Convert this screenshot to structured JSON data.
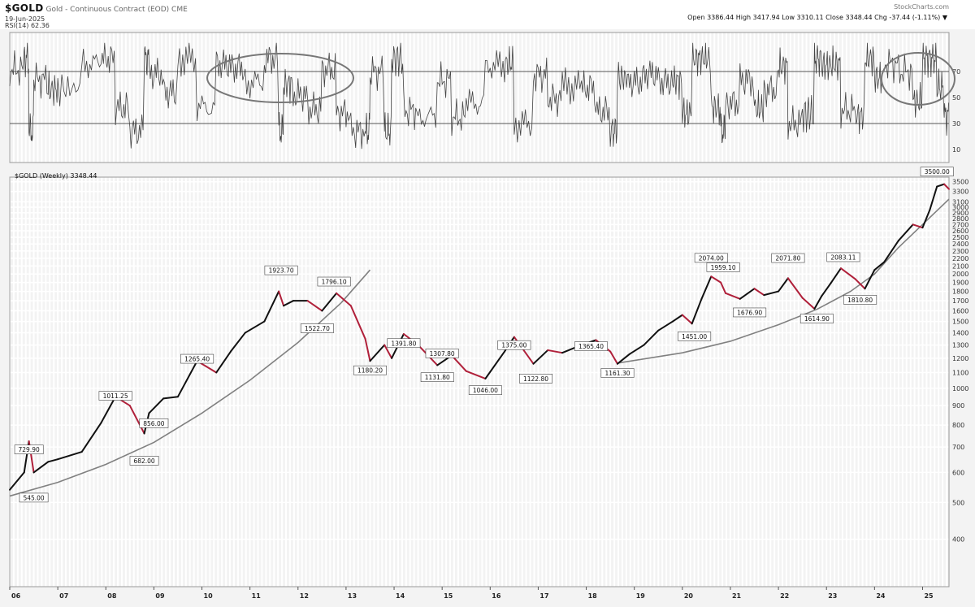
{
  "header": {
    "symbol": "$GOLD",
    "description": "Gold - Continuous Contract (EOD) CME",
    "date_line": "19-Jun-2025",
    "rsi_label": "RSI(14) 62.36",
    "site": "StockCharts.com",
    "ohlc": "Open 3386.44 High 3417.94 Low 3310.11 Close 3348.44 Chg -37.44 (-1.11%) ▼"
  },
  "indicator": {
    "name": "RSI(14)",
    "value": 62.36,
    "axis_labels": [
      "70",
      "50",
      "30",
      "10"
    ],
    "ylim": [
      0,
      100
    ],
    "overbought_level": 70,
    "oversold_level": 30,
    "highlight_ellipses": 2
  },
  "price_panel_label": "$GOLD (Weekly) 3348.44",
  "chart_data": {
    "type": "line",
    "title": "$GOLD (Weekly) 3348.44",
    "y_scale": "log",
    "ylim": [
      300,
      3600
    ],
    "yticks": [
      "3500",
      "3300",
      "3100",
      "3000",
      "2900",
      "2800",
      "2700",
      "2600",
      "2500",
      "2400",
      "2300",
      "2200",
      "2100",
      "2000",
      "1900",
      "1800",
      "1700",
      "1600",
      "1500",
      "1400",
      "1300",
      "1200",
      "1100",
      "1000",
      "900",
      "800",
      "700",
      "600",
      "500",
      "400"
    ],
    "xticks": [
      "06",
      "07",
      "08",
      "09",
      "10",
      "11",
      "12",
      "13",
      "14",
      "15",
      "16",
      "17",
      "18",
      "19",
      "20",
      "21",
      "22",
      "23",
      "24",
      "25"
    ],
    "xlim": [
      2006.0,
      2025.55
    ],
    "series": [
      {
        "x": [
          2006.0,
          2006.3,
          2006.4,
          2006.5,
          2006.8,
          2007.0,
          2007.5,
          2007.9,
          2008.2,
          2008.5,
          2008.8,
          2008.9,
          2009.2,
          2009.5,
          2009.9,
          2010.3,
          2010.6,
          2010.9,
          2011.3,
          2011.6,
          2011.7,
          2011.9,
          2012.2,
          2012.5,
          2012.8,
          2013.1,
          2013.4,
          2013.5,
          2013.8,
          2013.95,
          2014.2,
          2014.5,
          2014.9,
          2015.2,
          2015.5,
          2015.9,
          2016.3,
          2016.5,
          2016.9,
          2017.2,
          2017.5,
          2017.9,
          2018.2,
          2018.5,
          2018.65,
          2018.9,
          2019.2,
          2019.5,
          2019.8,
          2020.0,
          2020.2,
          2020.4,
          2020.6,
          2020.8,
          2020.9,
          2021.2,
          2021.5,
          2021.7,
          2022.0,
          2022.2,
          2022.5,
          2022.75,
          2022.9,
          2023.1,
          2023.3,
          2023.6,
          2023.8,
          2024.0,
          2024.2,
          2024.5,
          2024.8,
          2025.0,
          2025.15,
          2025.3,
          2025.45,
          2025.55
        ],
        "values": [
          540,
          600,
          725,
          600,
          640,
          650,
          680,
          810,
          950,
          900,
          760,
          860,
          940,
          950,
          1180,
          1100,
          1250,
          1400,
          1500,
          1800,
          1650,
          1700,
          1700,
          1600,
          1780,
          1650,
          1350,
          1180,
          1300,
          1200,
          1390,
          1300,
          1150,
          1220,
          1110,
          1060,
          1250,
          1365,
          1160,
          1260,
          1240,
          1300,
          1340,
          1250,
          1160,
          1230,
          1300,
          1420,
          1500,
          1560,
          1480,
          1720,
          1970,
          1900,
          1780,
          1720,
          1830,
          1760,
          1800,
          1950,
          1730,
          1620,
          1750,
          1900,
          2070,
          1940,
          1830,
          2050,
          2150,
          2450,
          2700,
          2650,
          2950,
          3400,
          3450,
          3348
        ]
      }
    ],
    "annotations": [
      {
        "label": "729.90",
        "x": 2006.4,
        "y": 729.9
      },
      {
        "label": "545.00",
        "x": 2006.5,
        "y": 545.0
      },
      {
        "label": "1011.25",
        "x": 2008.2,
        "y": 1011.25
      },
      {
        "label": "682.00",
        "x": 2008.8,
        "y": 682.0
      },
      {
        "label": "856.00",
        "x": 2009.0,
        "y": 856.0
      },
      {
        "label": "1265.40",
        "x": 2009.9,
        "y": 1265.4
      },
      {
        "label": "1923.70",
        "x": 2011.65,
        "y": 1923.7
      },
      {
        "label": "1796.10",
        "x": 2012.75,
        "y": 1796.1
      },
      {
        "label": "1522.70",
        "x": 2012.4,
        "y": 1522.7
      },
      {
        "label": "1180.20",
        "x": 2013.5,
        "y": 1180.2
      },
      {
        "label": "1391.80",
        "x": 2014.2,
        "y": 1391.8
      },
      {
        "label": "1307.80",
        "x": 2015.0,
        "y": 1307.8
      },
      {
        "label": "1131.80",
        "x": 2014.9,
        "y": 1131.8
      },
      {
        "label": "1046.00",
        "x": 2015.9,
        "y": 1046.0
      },
      {
        "label": "1375.00",
        "x": 2016.5,
        "y": 1375.0
      },
      {
        "label": "1122.80",
        "x": 2016.95,
        "y": 1122.8
      },
      {
        "label": "1365.40",
        "x": 2018.1,
        "y": 1365.4
      },
      {
        "label": "1161.30",
        "x": 2018.65,
        "y": 1161.3
      },
      {
        "label": "2074.00",
        "x": 2020.6,
        "y": 2074.0
      },
      {
        "label": "1959.10",
        "x": 2020.85,
        "y": 1959.1
      },
      {
        "label": "1451.00",
        "x": 2020.25,
        "y": 1451.0
      },
      {
        "label": "2071.80",
        "x": 2022.2,
        "y": 2071.8
      },
      {
        "label": "1676.90",
        "x": 2021.4,
        "y": 1676.9
      },
      {
        "label": "1614.90",
        "x": 2022.8,
        "y": 1614.9
      },
      {
        "label": "2083.11",
        "x": 2023.35,
        "y": 2083.11
      },
      {
        "label": "1810.80",
        "x": 2023.7,
        "y": 1810.8
      },
      {
        "label": "3500.00",
        "x": 2025.3,
        "y": 3500.0
      }
    ],
    "trendlines": [
      {
        "x": [
          2006.0,
          2007.0,
          2008.0,
          2009.0,
          2010.0,
          2011.0,
          2012.0,
          2012.9
        ],
        "y": [
          520,
          565,
          630,
          720,
          860,
          1050,
          1320,
          1680
        ]
      },
      {
        "x": [
          2018.65,
          2020.0,
          2021.0,
          2022.0,
          2022.8,
          2023.5,
          2024.0,
          2024.5,
          2025.55
        ],
        "y": [
          1165,
          1240,
          1330,
          1470,
          1614,
          1800,
          2000,
          2350,
          3150
        ]
      }
    ],
    "legend": "none",
    "grid": true,
    "colors": {
      "up": "#111111",
      "down": "#b0203a",
      "trendline": "#808080",
      "grid": "#ffffff",
      "background": "#f3f3f3"
    }
  }
}
